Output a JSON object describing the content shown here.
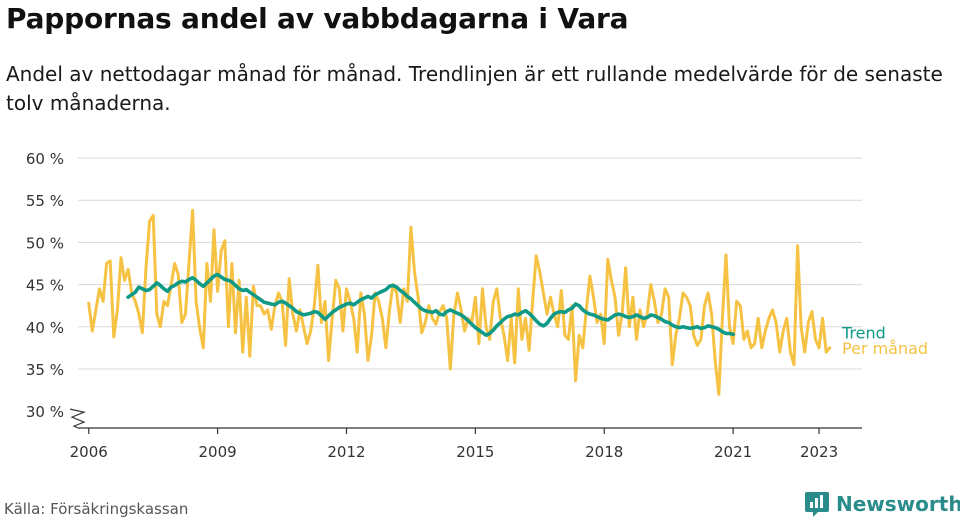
{
  "title": "Pappornas andel av vabbdagarna i Vara",
  "subtitle": "Andel av nettodagar månad för månad. Trendlinjen är ett rullande medelvärde för de senaste tolv månaderna.",
  "source": "Källa: Försäkringskassan",
  "brand": "Newsworthy",
  "colors": {
    "trend": "#0e9a86",
    "monthly": "#f6c244",
    "grid": "#d8d8d8",
    "brand": "#2a8c8a"
  },
  "chart_data": {
    "type": "line",
    "x_type": "date",
    "x_ticks": [
      "2006",
      "2009",
      "2012",
      "2015",
      "2018",
      "2021",
      "2023"
    ],
    "y_ticks": [
      "30 %",
      "35 %",
      "40 %",
      "45 %",
      "50 %",
      "55 %",
      "60 %"
    ],
    "ylim": [
      28,
      60
    ],
    "xlim": [
      "2005-10",
      "2024-01"
    ],
    "y_axis_break": true,
    "grid": "horizontal",
    "legend": "inline-right",
    "series": [
      {
        "name": "Trend",
        "color": "#0e9a86",
        "start": "2006-12",
        "values": [
          43.5,
          43.8,
          44.1,
          44.7,
          44.5,
          44.3,
          44.4,
          44.8,
          45.2,
          44.9,
          44.5,
          44.2,
          44.7,
          44.9,
          45.2,
          45.4,
          45.3,
          45.6,
          45.8,
          45.5,
          45.1,
          44.8,
          45.2,
          45.6,
          46.0,
          46.2,
          45.9,
          45.6,
          45.5,
          45.3,
          44.9,
          44.5,
          44.3,
          44.4,
          44.1,
          43.8,
          43.5,
          43.2,
          42.9,
          42.8,
          42.7,
          42.6,
          42.9,
          43.0,
          42.8,
          42.5,
          42.2,
          41.8,
          41.6,
          41.4,
          41.5,
          41.6,
          41.8,
          41.7,
          41.3,
          40.9,
          41.3,
          41.7,
          42.0,
          42.3,
          42.5,
          42.7,
          42.8,
          42.6,
          42.9,
          43.2,
          43.4,
          43.6,
          43.4,
          43.8,
          44.0,
          44.2,
          44.4,
          44.8,
          44.9,
          44.7,
          44.3,
          44.0,
          43.6,
          43.3,
          42.9,
          42.5,
          42.1,
          41.9,
          41.8,
          41.7,
          41.9,
          41.5,
          41.4,
          41.8,
          42.0,
          41.8,
          41.6,
          41.4,
          41.1,
          40.7,
          40.3,
          39.9,
          39.6,
          39.3,
          39.0,
          39.2,
          39.6,
          40.1,
          40.5,
          40.9,
          41.2,
          41.3,
          41.5,
          41.4,
          41.7,
          41.9,
          41.6,
          41.2,
          40.7,
          40.3,
          40.1,
          40.4,
          41.0,
          41.5,
          41.7,
          41.8,
          41.7,
          42.0,
          42.2,
          42.7,
          42.5,
          42.0,
          41.7,
          41.5,
          41.4,
          41.2,
          41.0,
          40.9,
          40.8,
          41.1,
          41.4,
          41.5,
          41.4,
          41.2,
          41.1,
          41.2,
          41.4,
          41.2,
          41.0,
          41.1,
          41.4,
          41.3,
          41.1,
          40.9,
          40.6,
          40.5,
          40.2,
          40.0,
          39.9,
          40.0,
          39.9,
          39.8,
          39.9,
          40.0,
          39.8,
          39.9,
          40.1,
          40.0,
          39.9,
          39.7,
          39.4,
          39.2,
          39.2,
          39.1
        ]
      },
      {
        "name": "Per månad",
        "color": "#f6c244",
        "start": "2006-01",
        "values": [
          42.8,
          39.5,
          42.0,
          44.5,
          43.0,
          47.5,
          47.8,
          38.8,
          42.0,
          48.2,
          45.5,
          46.8,
          44.0,
          43.0,
          41.5,
          39.3,
          47.0,
          52.5,
          53.2,
          41.5,
          40.0,
          43.0,
          42.5,
          45.0,
          47.5,
          46.2,
          40.5,
          41.5,
          47.5,
          53.8,
          43.0,
          39.8,
          37.5,
          47.5,
          43.0,
          51.5,
          44.2,
          49.0,
          50.2,
          40.0,
          47.5,
          39.3,
          45.5,
          37.0,
          43.5,
          36.5,
          44.8,
          42.5,
          42.5,
          41.5,
          42.0,
          39.7,
          42.5,
          44.0,
          43.0,
          37.8,
          45.7,
          41.5,
          39.5,
          42.0,
          40.0,
          38.0,
          39.5,
          42.5,
          47.3,
          40.5,
          43.0,
          36.0,
          41.0,
          45.5,
          44.5,
          39.5,
          44.5,
          43.0,
          41.0,
          37.0,
          44.0,
          41.5,
          36.0,
          39.0,
          44.0,
          43.0,
          41.0,
          37.5,
          42.0,
          45.0,
          44.0,
          40.5,
          44.5,
          43.0,
          51.8,
          46.5,
          43.5,
          39.3,
          40.5,
          42.5,
          41.0,
          40.3,
          41.8,
          42.5,
          41.0,
          35.0,
          41.5,
          44.0,
          42.0,
          39.5,
          41.0,
          40.5,
          43.5,
          38.0,
          44.5,
          40.0,
          38.5,
          43.0,
          44.5,
          41.0,
          39.0,
          36.0,
          41.0,
          35.7,
          44.5,
          38.5,
          41.0,
          37.2,
          43.0,
          48.4,
          46.5,
          44.0,
          41.5,
          43.5,
          41.5,
          40.0,
          44.3,
          39.0,
          38.5,
          42.5,
          33.6,
          39.0,
          37.5,
          42.0,
          46.0,
          43.5,
          40.5,
          41.5,
          38.0,
          48.0,
          45.5,
          43.5,
          39.0,
          41.5,
          47.0,
          40.0,
          43.5,
          38.5,
          42.0,
          40.0,
          41.5,
          45.0,
          43.0,
          40.5,
          41.5,
          44.5,
          43.5,
          35.5,
          39.0,
          41.0,
          44.0,
          43.5,
          42.5,
          39.0,
          37.8,
          38.5,
          42.5,
          44.0,
          41.5,
          36.0,
          32.0,
          41.0,
          48.5,
          40.0,
          38.0,
          43.0,
          42.5,
          38.5,
          39.5,
          37.5,
          38.0,
          41.0,
          37.5,
          39.5,
          41.0,
          42.0,
          40.5,
          37.0,
          39.5,
          41.0,
          37.0,
          35.5,
          49.6,
          40.0,
          37.0,
          40.5,
          41.8,
          38.5,
          37.5,
          41.0,
          37.0,
          37.5
        ]
      }
    ]
  }
}
